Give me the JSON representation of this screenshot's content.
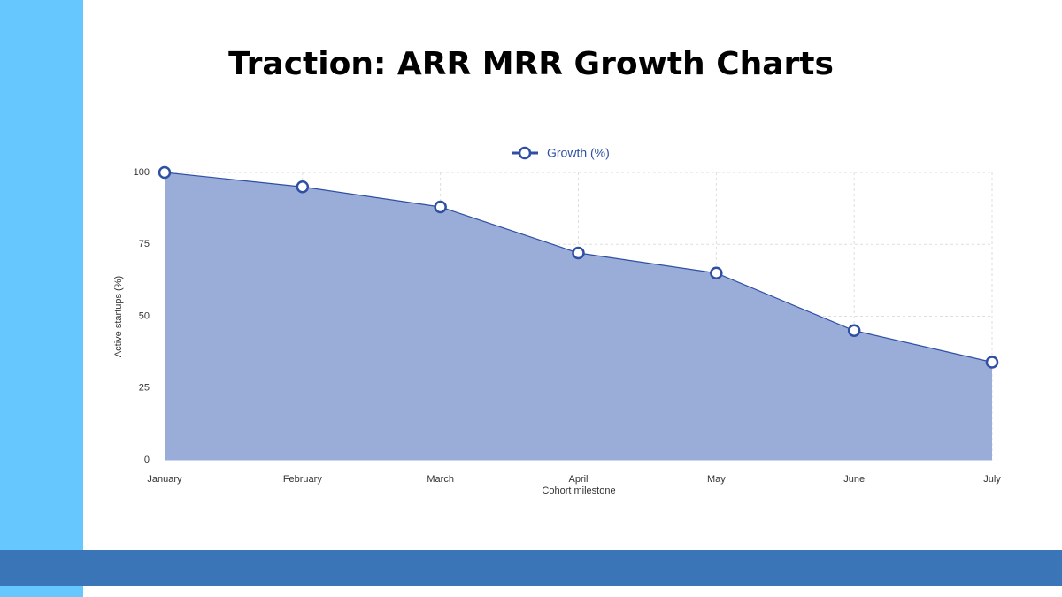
{
  "chart_data": {
    "type": "area",
    "title": "Traction: ARR MRR Growth Charts",
    "x_label": "Cohort milestone",
    "y_label": "Active startups (%)",
    "categories": [
      "January",
      "February",
      "March",
      "April",
      "May",
      "June",
      "July"
    ],
    "series": [
      {
        "name": "Growth (%)",
        "color": "#2e4fa3",
        "fill": "#9aadd9",
        "values": [
          100,
          95,
          88,
          72,
          65,
          45,
          34
        ]
      }
    ],
    "ylim": [
      0,
      100
    ],
    "yticks": [
      0,
      25,
      50,
      75,
      100
    ],
    "grid": true,
    "legend": "top"
  }
}
